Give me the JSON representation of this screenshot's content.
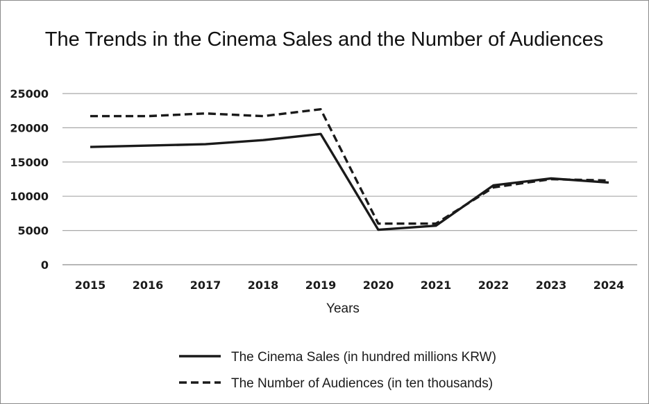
{
  "chart_data": {
    "type": "line",
    "title": "The Trends in the Cinema Sales and the Number of Audiences",
    "xlabel": "Years",
    "ylabel": "",
    "x": [
      "2015",
      "2016",
      "2017",
      "2018",
      "2019",
      "2020",
      "2021",
      "2022",
      "2023",
      "2024"
    ],
    "ylim": [
      0,
      25000
    ],
    "yticks": [
      "0",
      "5000",
      "10000",
      "15000",
      "20000",
      "25000"
    ],
    "grid": "horizontal",
    "legend_position": "bottom-center",
    "series": [
      {
        "name": "The Cinema Sales (in hundred millions KRW)",
        "style": "solid",
        "color": "#1a1a1a",
        "values": [
          17200,
          17400,
          17600,
          18200,
          19100,
          5100,
          5700,
          11600,
          12600,
          12000
        ]
      },
      {
        "name": "The Number of Audiences (in ten thousands)",
        "style": "dashed",
        "color": "#1a1a1a",
        "values": [
          21700,
          21700,
          22100,
          21700,
          22700,
          6000,
          6000,
          11300,
          12500,
          12300
        ]
      }
    ]
  }
}
